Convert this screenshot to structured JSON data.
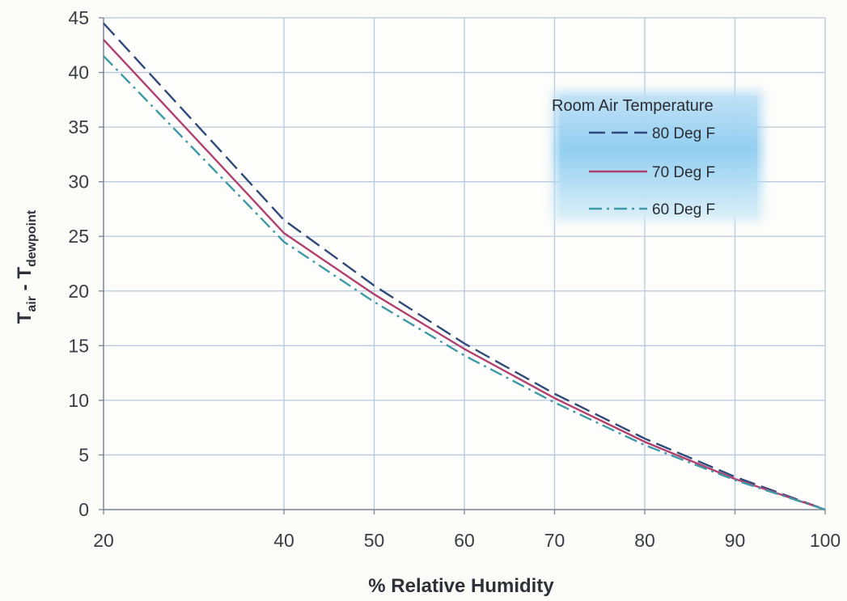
{
  "chart_data": {
    "type": "line",
    "title": "",
    "xlabel": "% Relative Humidity",
    "ylabel_main": "T",
    "ylabel_sub_air": "air",
    "ylabel_sep": " - ",
    "ylabel_sub_dew": "dewpoint",
    "xlim": [
      20,
      100
    ],
    "ylim": [
      0,
      45
    ],
    "x_ticks": [
      20,
      40,
      50,
      60,
      70,
      80,
      90,
      100
    ],
    "y_ticks": [
      0,
      5,
      10,
      15,
      20,
      25,
      30,
      35,
      40,
      45
    ],
    "grid": true,
    "legend": {
      "title": "Room Air Temperature",
      "placement": "top-right"
    },
    "series": [
      {
        "name": "80 Deg F",
        "color": "#2f4a7a",
        "style": "dashed",
        "x": [
          20,
          40,
          50,
          60,
          70,
          80,
          90,
          100
        ],
        "y": [
          44.5,
          26.5,
          20.5,
          15.2,
          10.6,
          6.5,
          3.0,
          0
        ]
      },
      {
        "name": "70 Deg F",
        "color": "#b0406e",
        "style": "solid",
        "x": [
          20,
          40,
          50,
          60,
          70,
          80,
          90,
          100
        ],
        "y": [
          43.0,
          25.3,
          19.7,
          14.7,
          10.2,
          6.2,
          2.8,
          0
        ]
      },
      {
        "name": "60 Deg F",
        "color": "#3d9aa6",
        "style": "dashdot",
        "x": [
          20,
          40,
          50,
          60,
          70,
          80,
          90,
          100
        ],
        "y": [
          41.5,
          24.5,
          19.0,
          14.1,
          9.8,
          5.9,
          2.7,
          0
        ]
      }
    ]
  }
}
